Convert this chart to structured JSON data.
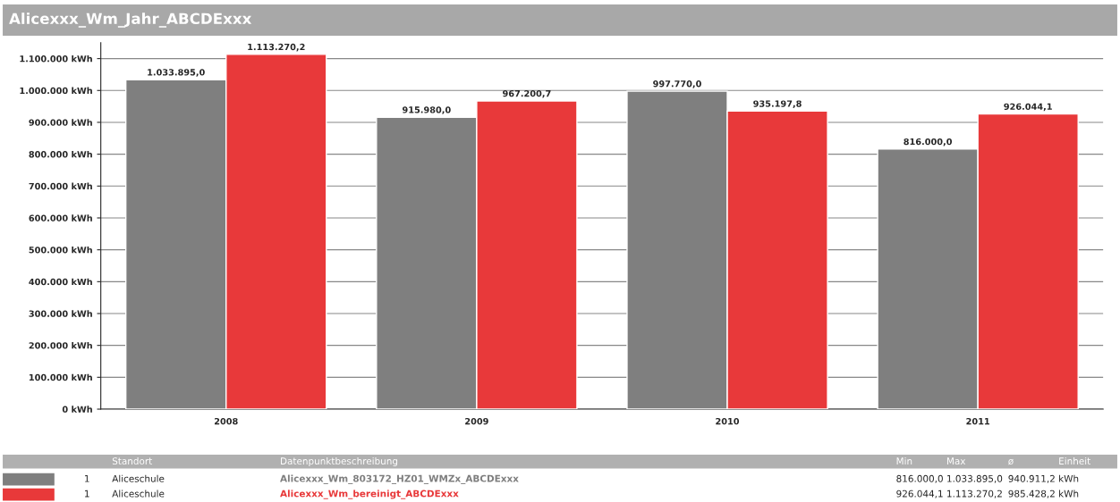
{
  "chart_data": {
    "type": "bar",
    "title": "Alicexxx_Wm_Jahr_ABCDExxx",
    "categories": [
      "2008",
      "2009",
      "2010",
      "2011"
    ],
    "series": [
      {
        "name": "Alicexxx_Wm_803172_HZ01_WMZx_ABCDExxx",
        "color": "#7f7f7f",
        "values": [
          1033895.0,
          915980.0,
          997770.0,
          816000.0
        ],
        "value_labels": [
          "1.033.895,0",
          "915.980,0",
          "997.770,0",
          "816.000,0"
        ]
      },
      {
        "name": "Alicexxx_Wm_bereinigt_ABCDExxx",
        "color": "#e8393a",
        "values": [
          1113270.2,
          967200.7,
          935197.8,
          926044.1
        ],
        "value_labels": [
          "1.113.270,2",
          "967.200,7",
          "935.197,8",
          "926.044,1"
        ]
      }
    ],
    "ylim": [
      0,
      1150000
    ],
    "yticks": [
      {
        "value": 0,
        "label": "0 kWh"
      },
      {
        "value": 100000,
        "label": "100.000 kWh"
      },
      {
        "value": 200000,
        "label": "200.000 kWh"
      },
      {
        "value": 300000,
        "label": "300.000 kWh"
      },
      {
        "value": 400000,
        "label": "400.000 kWh"
      },
      {
        "value": 500000,
        "label": "500.000 kWh"
      },
      {
        "value": 600000,
        "label": "600.000 kWh"
      },
      {
        "value": 700000,
        "label": "700.000 kWh"
      },
      {
        "value": 800000,
        "label": "800.000 kWh"
      },
      {
        "value": 900000,
        "label": "900.000 kWh"
      },
      {
        "value": 1000000,
        "label": "1.000.000 kWh"
      },
      {
        "value": 1100000,
        "label": "1.100.000 kWh"
      }
    ],
    "grid": "y",
    "legend": "bottom",
    "annotations": [
      "Standort",
      "Datenpunktbeschreibung",
      "Min",
      "Max",
      "ø",
      "Einheit",
      "1",
      "Aliceschule",
      "816.000,0",
      "1.033.895,0",
      "940.911,2",
      "kWh",
      "1",
      "Aliceschule",
      "926.044,1",
      "1.113.270,2",
      "985.428,2",
      "kWh"
    ]
  }
}
